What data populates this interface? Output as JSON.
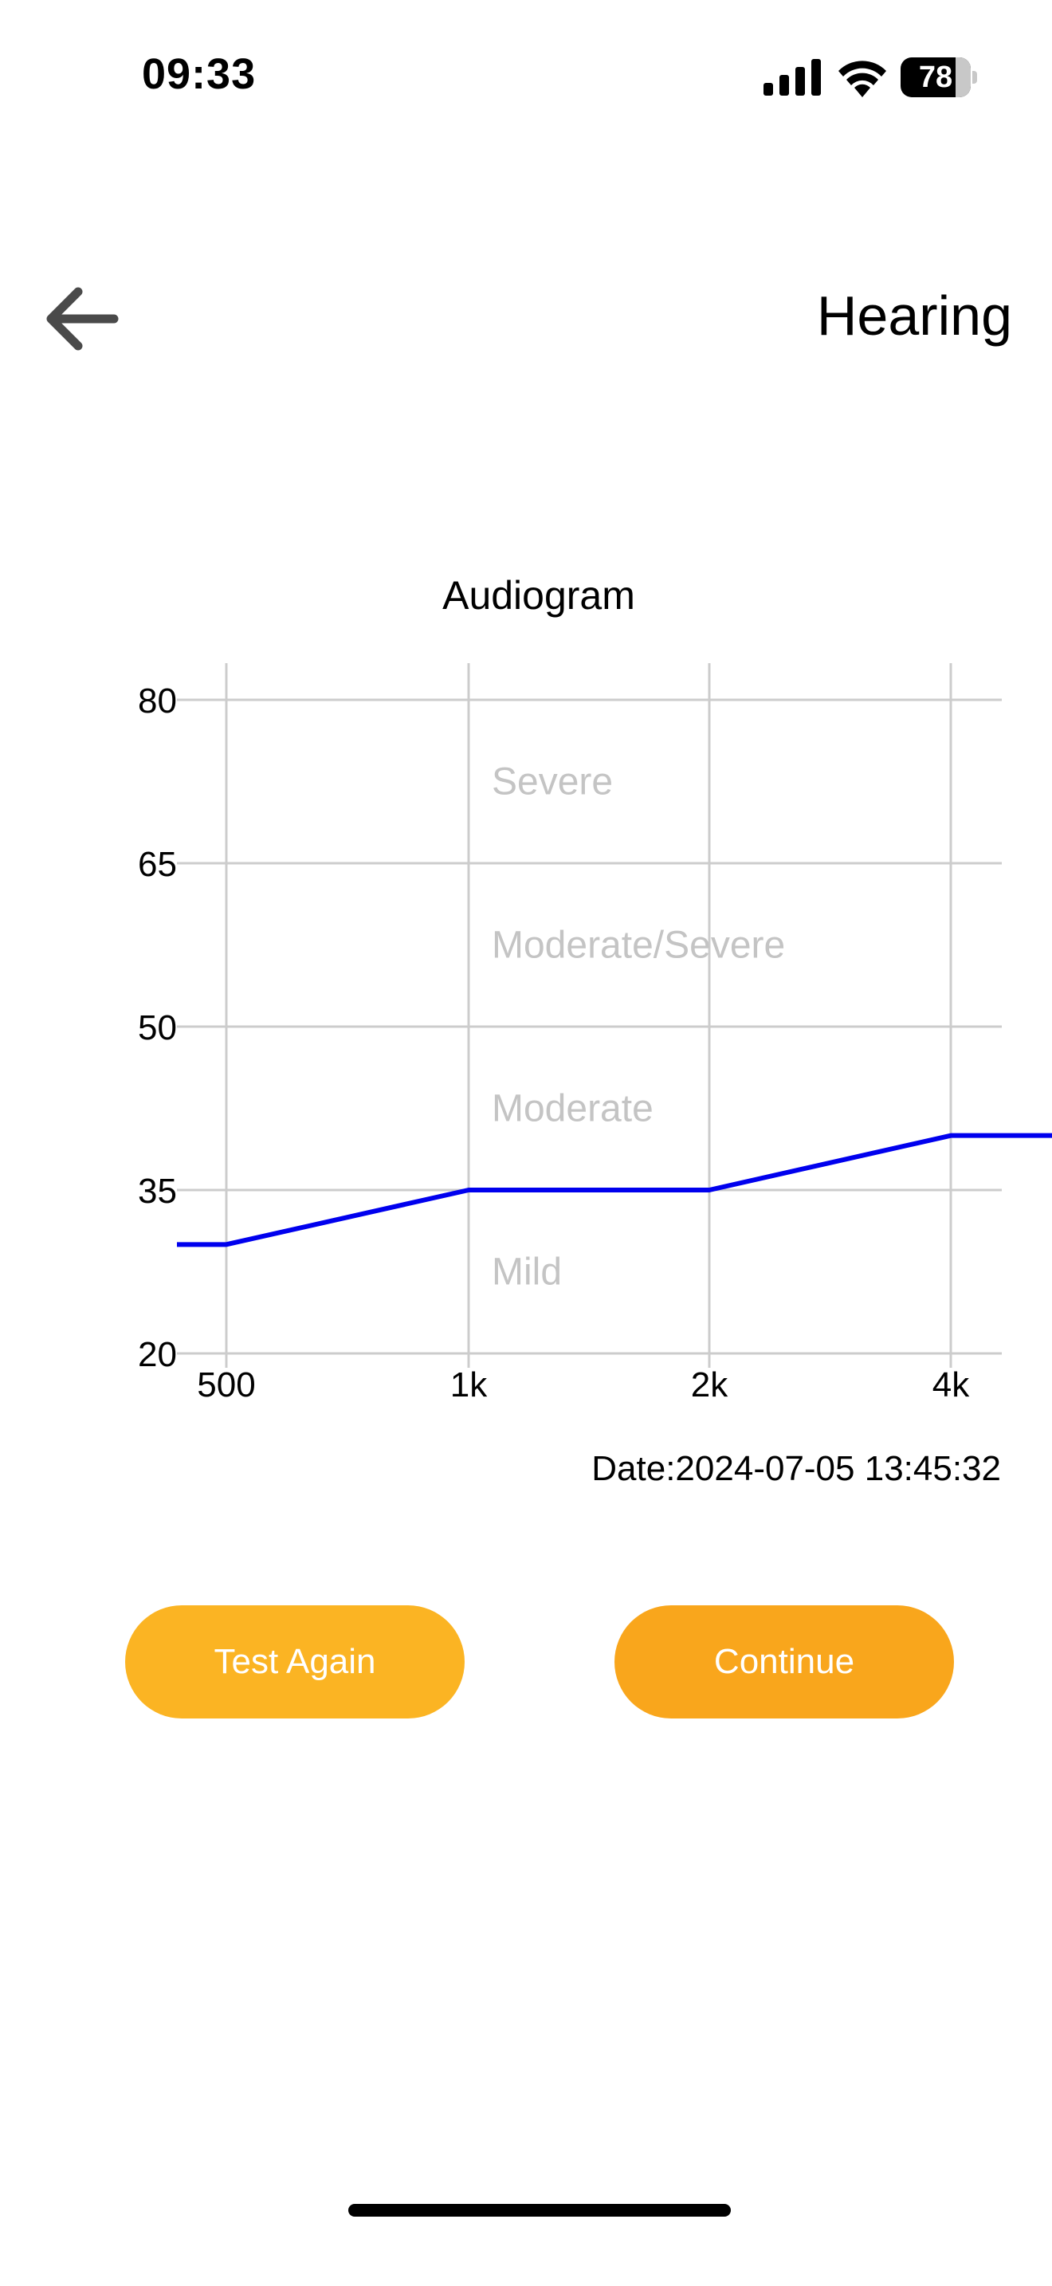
{
  "status_bar": {
    "time": "09:33",
    "battery_level": "78",
    "battery_fraction": 0.78
  },
  "header": {
    "title": "Hearing",
    "back_icon": "arrow-left-icon"
  },
  "chart_data": {
    "type": "line",
    "title": "Audiogram",
    "categories": [
      "500",
      "1k",
      "2k",
      "4k"
    ],
    "series": [
      {
        "values": [
          30,
          35,
          35,
          40
        ],
        "color": "#0000ee"
      }
    ],
    "yticks": [
      "80",
      "65",
      "50",
      "35",
      "20"
    ],
    "ylim": [
      20,
      80
    ],
    "zones": [
      {
        "label": "Severe",
        "value": 72.5
      },
      {
        "label": "Moderate/Severe",
        "value": 57.5
      },
      {
        "label": "Moderate",
        "value": 42.5
      },
      {
        "label": "Mild",
        "value": 27.5
      }
    ],
    "grid": true,
    "date_label": "Date:2024-07-05 13:45:32"
  },
  "actions": {
    "test_again_label": "Test Again",
    "continue_label": "Continue"
  },
  "colors": {
    "line": "#0000ee",
    "grid": "#cccccc",
    "zone_text": "#c4c4c4",
    "button_primary": "#fbb423",
    "button_secondary": "#f9a61c"
  }
}
